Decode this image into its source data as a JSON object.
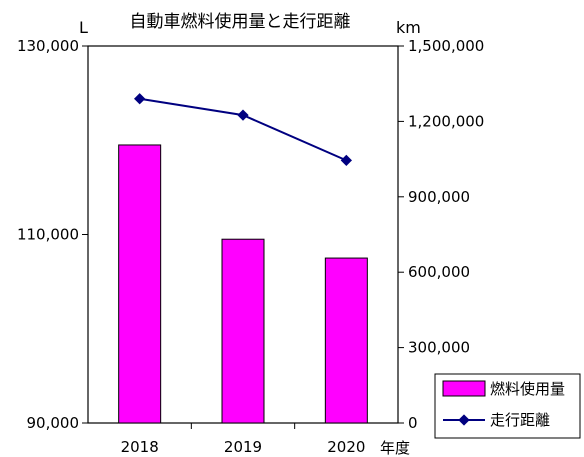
{
  "chart_data": {
    "type": "bar",
    "title": "自動車燃料使用量と走行距離",
    "categories": [
      "2018",
      "2019",
      "2020"
    ],
    "xlabel": "年度",
    "y_left_unit": "L",
    "y_right_unit": "km",
    "y_left_lim": [
      90000,
      130000
    ],
    "y_right_lim": [
      0,
      1500000
    ],
    "y_left_ticks": [
      "90,000",
      "110,000",
      "130,000"
    ],
    "y_right_ticks": [
      "0",
      "300,000",
      "600,000",
      "900,000",
      "1,200,000",
      "1,500,000"
    ],
    "series": [
      {
        "name": "燃料使用量",
        "type": "bar",
        "axis": "left",
        "color": "#ff00ff",
        "values": [
          119500,
          109500,
          107500
        ]
      },
      {
        "name": "走行距離",
        "type": "line",
        "axis": "right",
        "color": "#000080",
        "values": [
          1290000,
          1225000,
          1045000
        ]
      }
    ],
    "legend_position": "bottom-right",
    "grid": false
  }
}
